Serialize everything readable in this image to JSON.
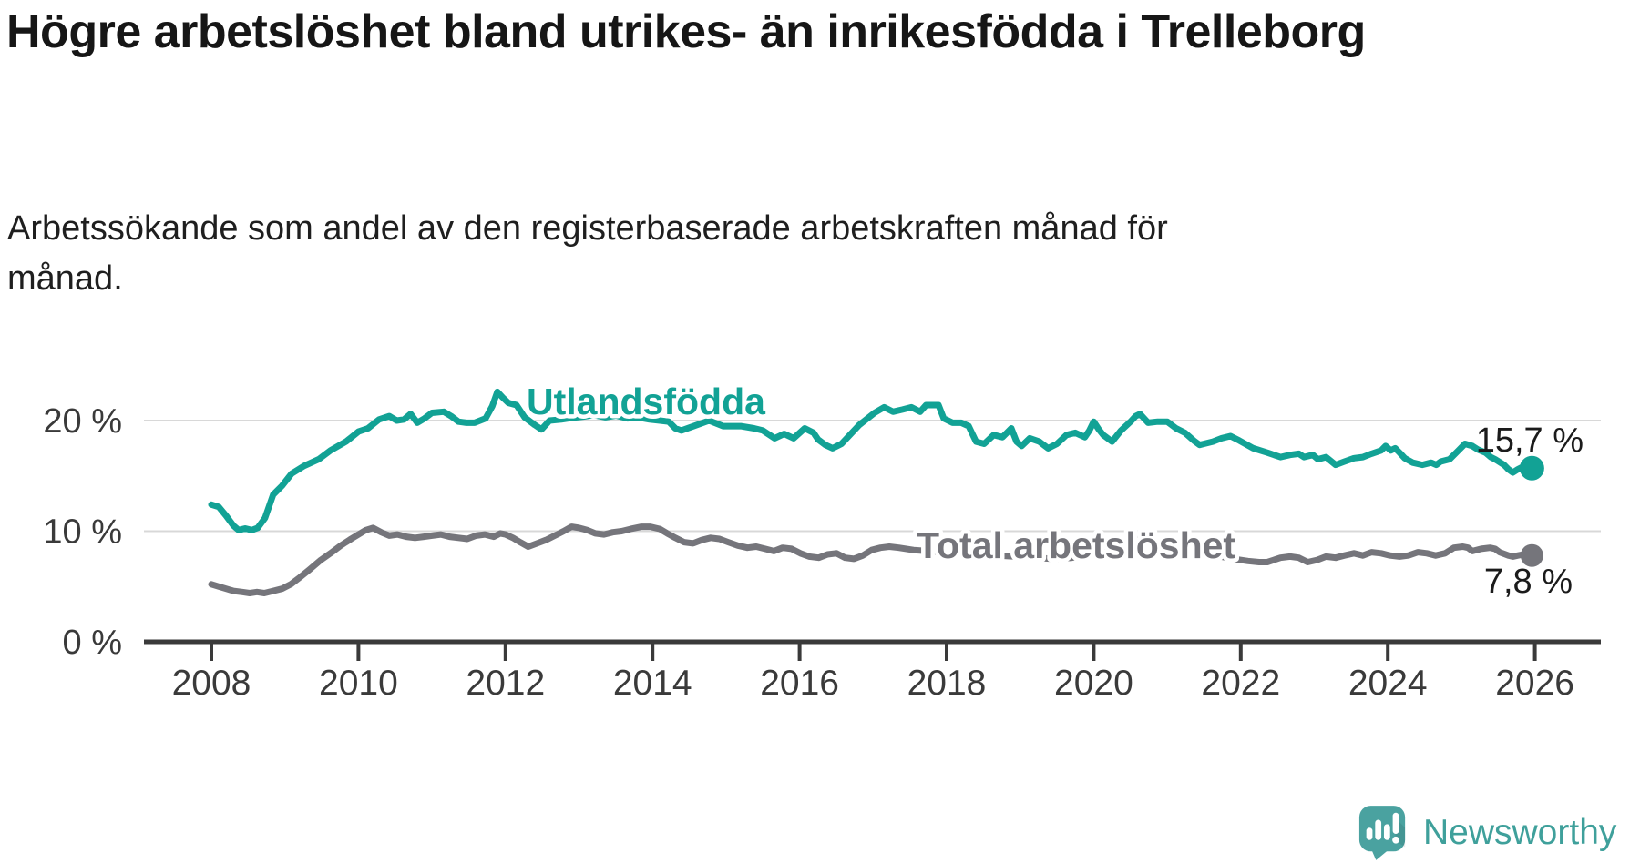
{
  "header": {
    "title": "Högre arbetslöshet bland utrikes- än inrikesfödda i Trelleborg",
    "subtitle": "Arbetssökande som andel av den registerbaserade arbetskraften månad för månad."
  },
  "chart_data": {
    "type": "line",
    "unit": "%",
    "grid": "horizontal",
    "xlim": [
      2007.08,
      2026.9
    ],
    "ylim": [
      0,
      23.5
    ],
    "x_ticks": [
      2008,
      2010,
      2012,
      2014,
      2016,
      2018,
      2020,
      2022,
      2024,
      2026
    ],
    "y_ticks": [
      {
        "value": 0,
        "label": "0 %"
      },
      {
        "value": 10,
        "label": "10 %"
      },
      {
        "value": 20,
        "label": "20 %"
      }
    ],
    "series": [
      {
        "name": "Utlandsfödda",
        "color": "#12a295",
        "end_label": "15,7 %",
        "end_value": 15.7,
        "points": [
          [
            2008.0,
            12.4
          ],
          [
            2008.1,
            12.2
          ],
          [
            2008.2,
            11.4
          ],
          [
            2008.3,
            10.5
          ],
          [
            2008.37,
            10.1
          ],
          [
            2008.46,
            10.25
          ],
          [
            2008.55,
            10.1
          ],
          [
            2008.63,
            10.3
          ],
          [
            2008.73,
            11.2
          ],
          [
            2008.84,
            13.3
          ],
          [
            2008.96,
            14.1
          ],
          [
            2009.09,
            15.2
          ],
          [
            2009.26,
            15.9
          ],
          [
            2009.46,
            16.5
          ],
          [
            2009.62,
            17.3
          ],
          [
            2009.83,
            18.1
          ],
          [
            2010.0,
            19.0
          ],
          [
            2010.13,
            19.3
          ],
          [
            2010.28,
            20.1
          ],
          [
            2010.42,
            20.4
          ],
          [
            2010.52,
            20.0
          ],
          [
            2010.62,
            20.1
          ],
          [
            2010.71,
            20.6
          ],
          [
            2010.8,
            19.8
          ],
          [
            2010.9,
            20.2
          ],
          [
            2011.0,
            20.7
          ],
          [
            2011.16,
            20.8
          ],
          [
            2011.26,
            20.4
          ],
          [
            2011.36,
            19.9
          ],
          [
            2011.47,
            19.8
          ],
          [
            2011.58,
            19.8
          ],
          [
            2011.73,
            20.2
          ],
          [
            2011.82,
            21.3
          ],
          [
            2011.89,
            22.6
          ],
          [
            2011.96,
            22.1
          ],
          [
            2012.04,
            21.6
          ],
          [
            2012.15,
            21.4
          ],
          [
            2012.26,
            20.3
          ],
          [
            2012.4,
            19.6
          ],
          [
            2012.49,
            19.2
          ],
          [
            2012.6,
            20.0
          ],
          [
            2012.76,
            20.1
          ],
          [
            2012.9,
            20.25
          ],
          [
            2013.06,
            20.35
          ],
          [
            2013.2,
            20.5
          ],
          [
            2013.36,
            20.3
          ],
          [
            2013.5,
            20.45
          ],
          [
            2013.66,
            20.2
          ],
          [
            2013.8,
            20.3
          ],
          [
            2013.96,
            20.1
          ],
          [
            2014.1,
            20.0
          ],
          [
            2014.22,
            19.9
          ],
          [
            2014.31,
            19.3
          ],
          [
            2014.39,
            19.1
          ],
          [
            2014.56,
            19.5
          ],
          [
            2014.77,
            20.0
          ],
          [
            2014.96,
            19.5
          ],
          [
            2015.2,
            19.5
          ],
          [
            2015.38,
            19.3
          ],
          [
            2015.5,
            19.1
          ],
          [
            2015.66,
            18.4
          ],
          [
            2015.79,
            18.8
          ],
          [
            2015.92,
            18.4
          ],
          [
            2016.07,
            19.3
          ],
          [
            2016.19,
            18.9
          ],
          [
            2016.25,
            18.3
          ],
          [
            2016.35,
            17.8
          ],
          [
            2016.45,
            17.5
          ],
          [
            2016.57,
            17.9
          ],
          [
            2016.81,
            19.6
          ],
          [
            2017.02,
            20.7
          ],
          [
            2017.15,
            21.2
          ],
          [
            2017.27,
            20.8
          ],
          [
            2017.4,
            21.0
          ],
          [
            2017.52,
            21.2
          ],
          [
            2017.64,
            20.8
          ],
          [
            2017.72,
            21.4
          ],
          [
            2017.89,
            21.4
          ],
          [
            2017.96,
            20.2
          ],
          [
            2018.08,
            19.8
          ],
          [
            2018.2,
            19.8
          ],
          [
            2018.3,
            19.5
          ],
          [
            2018.4,
            18.1
          ],
          [
            2018.51,
            17.9
          ],
          [
            2018.64,
            18.7
          ],
          [
            2018.76,
            18.5
          ],
          [
            2018.88,
            19.3
          ],
          [
            2018.95,
            18.1
          ],
          [
            2019.02,
            17.7
          ],
          [
            2019.13,
            18.4
          ],
          [
            2019.26,
            18.1
          ],
          [
            2019.38,
            17.5
          ],
          [
            2019.5,
            17.9
          ],
          [
            2019.63,
            18.7
          ],
          [
            2019.75,
            18.9
          ],
          [
            2019.88,
            18.5
          ],
          [
            2019.94,
            19.1
          ],
          [
            2020.0,
            19.9
          ],
          [
            2020.07,
            19.2
          ],
          [
            2020.13,
            18.7
          ],
          [
            2020.25,
            18.1
          ],
          [
            2020.37,
            19.1
          ],
          [
            2020.5,
            19.9
          ],
          [
            2020.57,
            20.4
          ],
          [
            2020.63,
            20.6
          ],
          [
            2020.74,
            19.8
          ],
          [
            2020.87,
            19.9
          ],
          [
            2021.0,
            19.9
          ],
          [
            2021.12,
            19.3
          ],
          [
            2021.24,
            18.9
          ],
          [
            2021.36,
            18.2
          ],
          [
            2021.44,
            17.8
          ],
          [
            2021.5,
            17.9
          ],
          [
            2021.62,
            18.1
          ],
          [
            2021.74,
            18.4
          ],
          [
            2021.86,
            18.6
          ],
          [
            2021.98,
            18.2
          ],
          [
            2022.17,
            17.5
          ],
          [
            2022.36,
            17.1
          ],
          [
            2022.54,
            16.7
          ],
          [
            2022.67,
            16.9
          ],
          [
            2022.79,
            17.0
          ],
          [
            2022.86,
            16.7
          ],
          [
            2022.98,
            16.9
          ],
          [
            2023.05,
            16.5
          ],
          [
            2023.16,
            16.7
          ],
          [
            2023.29,
            16.0
          ],
          [
            2023.41,
            16.3
          ],
          [
            2023.54,
            16.6
          ],
          [
            2023.66,
            16.7
          ],
          [
            2023.78,
            17.0
          ],
          [
            2023.91,
            17.3
          ],
          [
            2023.97,
            17.7
          ],
          [
            2024.04,
            17.3
          ],
          [
            2024.1,
            17.5
          ],
          [
            2024.16,
            17.1
          ],
          [
            2024.23,
            16.6
          ],
          [
            2024.34,
            16.2
          ],
          [
            2024.47,
            16.0
          ],
          [
            2024.59,
            16.2
          ],
          [
            2024.66,
            16.0
          ],
          [
            2024.72,
            16.3
          ],
          [
            2024.84,
            16.5
          ],
          [
            2024.96,
            17.3
          ],
          [
            2025.05,
            17.9
          ],
          [
            2025.15,
            17.7
          ],
          [
            2025.22,
            17.4
          ],
          [
            2025.33,
            17.1
          ],
          [
            2025.4,
            16.7
          ],
          [
            2025.46,
            16.5
          ],
          [
            2025.58,
            16.0
          ],
          [
            2025.64,
            15.6
          ],
          [
            2025.7,
            15.3
          ],
          [
            2025.77,
            15.6
          ],
          [
            2025.83,
            15.8
          ],
          [
            2025.89,
            15.3
          ],
          [
            2025.96,
            15.7
          ]
        ]
      },
      {
        "name": "Total arbetslöshet",
        "color": "#75757b",
        "end_label": "7,8 %",
        "end_value": 7.8,
        "points": [
          [
            2008.0,
            5.2
          ],
          [
            2008.1,
            5.0
          ],
          [
            2008.2,
            4.8
          ],
          [
            2008.3,
            4.6
          ],
          [
            2008.42,
            4.5
          ],
          [
            2008.52,
            4.4
          ],
          [
            2008.62,
            4.5
          ],
          [
            2008.72,
            4.4
          ],
          [
            2008.84,
            4.6
          ],
          [
            2008.96,
            4.8
          ],
          [
            2009.08,
            5.2
          ],
          [
            2009.2,
            5.8
          ],
          [
            2009.33,
            6.5
          ],
          [
            2009.49,
            7.4
          ],
          [
            2009.62,
            8.0
          ],
          [
            2009.76,
            8.7
          ],
          [
            2009.9,
            9.3
          ],
          [
            2010.0,
            9.7
          ],
          [
            2010.1,
            10.1
          ],
          [
            2010.2,
            10.3
          ],
          [
            2010.31,
            9.9
          ],
          [
            2010.42,
            9.6
          ],
          [
            2010.53,
            9.7
          ],
          [
            2010.65,
            9.5
          ],
          [
            2010.77,
            9.4
          ],
          [
            2010.89,
            9.5
          ],
          [
            2011.0,
            9.6
          ],
          [
            2011.12,
            9.7
          ],
          [
            2011.24,
            9.5
          ],
          [
            2011.36,
            9.4
          ],
          [
            2011.48,
            9.3
          ],
          [
            2011.6,
            9.6
          ],
          [
            2011.72,
            9.7
          ],
          [
            2011.84,
            9.5
          ],
          [
            2011.93,
            9.8
          ],
          [
            2012.0,
            9.7
          ],
          [
            2012.1,
            9.4
          ],
          [
            2012.2,
            9.0
          ],
          [
            2012.31,
            8.6
          ],
          [
            2012.43,
            8.9
          ],
          [
            2012.55,
            9.2
          ],
          [
            2012.67,
            9.6
          ],
          [
            2012.79,
            10.0
          ],
          [
            2012.9,
            10.4
          ],
          [
            2013.0,
            10.3
          ],
          [
            2013.11,
            10.1
          ],
          [
            2013.22,
            9.8
          ],
          [
            2013.34,
            9.7
          ],
          [
            2013.46,
            9.9
          ],
          [
            2013.58,
            10.0
          ],
          [
            2013.7,
            10.2
          ],
          [
            2013.85,
            10.4
          ],
          [
            2013.97,
            10.4
          ],
          [
            2014.1,
            10.2
          ],
          [
            2014.2,
            9.8
          ],
          [
            2014.31,
            9.4
          ],
          [
            2014.43,
            9.0
          ],
          [
            2014.55,
            8.9
          ],
          [
            2014.67,
            9.2
          ],
          [
            2014.79,
            9.4
          ],
          [
            2014.91,
            9.3
          ],
          [
            2015.03,
            9.0
          ],
          [
            2015.16,
            8.7
          ],
          [
            2015.29,
            8.5
          ],
          [
            2015.41,
            8.6
          ],
          [
            2015.53,
            8.4
          ],
          [
            2015.65,
            8.2
          ],
          [
            2015.77,
            8.5
          ],
          [
            2015.89,
            8.4
          ],
          [
            2016.01,
            8.0
          ],
          [
            2016.13,
            7.7
          ],
          [
            2016.26,
            7.6
          ],
          [
            2016.38,
            7.9
          ],
          [
            2016.5,
            8.0
          ],
          [
            2016.62,
            7.6
          ],
          [
            2016.74,
            7.5
          ],
          [
            2016.86,
            7.8
          ],
          [
            2016.98,
            8.3
          ],
          [
            2017.1,
            8.5
          ],
          [
            2017.22,
            8.6
          ],
          [
            2017.35,
            8.5
          ],
          [
            2017.55,
            8.3
          ],
          [
            2017.75,
            8.2
          ],
          [
            2017.95,
            8.1
          ],
          [
            2018.2,
            8.0
          ],
          [
            2018.45,
            7.9
          ],
          [
            2018.7,
            7.8
          ],
          [
            2018.95,
            7.7
          ],
          [
            2019.2,
            7.6
          ],
          [
            2019.45,
            7.5
          ],
          [
            2019.7,
            7.6
          ],
          [
            2019.95,
            7.9
          ],
          [
            2020.15,
            8.4
          ],
          [
            2020.35,
            9.0
          ],
          [
            2020.55,
            9.3
          ],
          [
            2020.75,
            9.2
          ],
          [
            2020.95,
            8.9
          ],
          [
            2021.15,
            8.5
          ],
          [
            2021.4,
            8.1
          ],
          [
            2021.65,
            7.8
          ],
          [
            2021.9,
            7.5
          ],
          [
            2022.1,
            7.3
          ],
          [
            2022.25,
            7.2
          ],
          [
            2022.36,
            7.2
          ],
          [
            2022.54,
            7.6
          ],
          [
            2022.67,
            7.7
          ],
          [
            2022.79,
            7.6
          ],
          [
            2022.91,
            7.2
          ],
          [
            2023.04,
            7.4
          ],
          [
            2023.16,
            7.7
          ],
          [
            2023.29,
            7.6
          ],
          [
            2023.41,
            7.8
          ],
          [
            2023.54,
            8.0
          ],
          [
            2023.66,
            7.8
          ],
          [
            2023.78,
            8.1
          ],
          [
            2023.91,
            8.0
          ],
          [
            2024.03,
            7.8
          ],
          [
            2024.16,
            7.7
          ],
          [
            2024.28,
            7.8
          ],
          [
            2024.41,
            8.1
          ],
          [
            2024.53,
            8.0
          ],
          [
            2024.65,
            7.8
          ],
          [
            2024.78,
            8.0
          ],
          [
            2024.9,
            8.5
          ],
          [
            2025.02,
            8.6
          ],
          [
            2025.09,
            8.5
          ],
          [
            2025.15,
            8.2
          ],
          [
            2025.27,
            8.4
          ],
          [
            2025.39,
            8.5
          ],
          [
            2025.46,
            8.4
          ],
          [
            2025.52,
            8.1
          ],
          [
            2025.64,
            7.8
          ],
          [
            2025.7,
            7.7
          ],
          [
            2025.77,
            7.8
          ],
          [
            2025.85,
            7.9
          ],
          [
            2025.96,
            7.8
          ]
        ]
      }
    ]
  },
  "colors": {
    "accent_teal": "#12a295",
    "series_gray": "#75757b",
    "gridline": "#d8d8d8",
    "axis": "#3a3a3a",
    "logo_teal": "#4aa2a0"
  },
  "footer": {
    "brand": "Newsworthy",
    "logo_icon": "bar-chart-speech-bubble-icon"
  }
}
